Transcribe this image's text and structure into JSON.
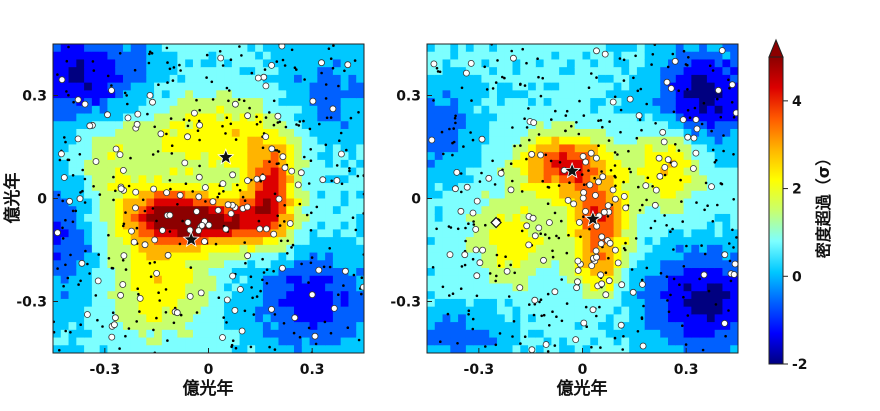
{
  "chart_data": [
    {
      "type": "heatmap",
      "panel": "left",
      "xlabel": "億光年",
      "ylabel": "億光年",
      "xlim": [
        -0.45,
        0.45
      ],
      "ylim": [
        -0.45,
        0.45
      ],
      "xticks": [
        {
          "value": -0.3,
          "label": "-0.3"
        },
        {
          "value": 0,
          "label": "0"
        },
        {
          "value": 0.3,
          "label": "0.3"
        }
      ],
      "yticks": [
        {
          "value": 0.3,
          "label": "0.3"
        },
        {
          "value": 0,
          "label": "0"
        },
        {
          "value": -0.3,
          "label": "-0.3"
        }
      ],
      "density_peaks": [
        {
          "x": -0.12,
          "y": -0.05,
          "amp": 3.8,
          "sx": 0.09,
          "sy": 0.06
        },
        {
          "x": 0.05,
          "y": -0.07,
          "amp": 3.6,
          "sx": 0.1,
          "sy": 0.05
        },
        {
          "x": 0.18,
          "y": 0.02,
          "amp": 3.4,
          "sx": 0.05,
          "sy": 0.1
        },
        {
          "x": -0.15,
          "y": -0.25,
          "amp": 1.8,
          "sx": 0.1,
          "sy": 0.1
        },
        {
          "x": 0.02,
          "y": 0.18,
          "amp": 1.8,
          "sx": 0.15,
          "sy": 0.08
        },
        {
          "x": -0.3,
          "y": 0.12,
          "amp": 1.2,
          "sx": 0.08,
          "sy": 0.15
        }
      ],
      "density_troughs": [
        {
          "x": -0.35,
          "y": 0.35,
          "amp": 2.6,
          "sx": 0.12,
          "sy": 0.1
        },
        {
          "x": -0.42,
          "y": -0.1,
          "amp": 1.6,
          "sx": 0.08,
          "sy": 0.15
        },
        {
          "x": 0.3,
          "y": -0.3,
          "amp": 2.0,
          "sx": 0.12,
          "sy": 0.1
        },
        {
          "x": 0.35,
          "y": 0.3,
          "amp": 1.2,
          "sx": 0.1,
          "sy": 0.1
        }
      ],
      "stars": [
        {
          "x": 0.05,
          "y": 0.12
        },
        {
          "x": -0.05,
          "y": -0.12
        }
      ],
      "diamonds": []
    },
    {
      "type": "heatmap",
      "panel": "right",
      "xlabel": "億光年",
      "ylabel": "",
      "xlim": [
        -0.45,
        0.45
      ],
      "ylim": [
        -0.45,
        0.45
      ],
      "xticks": [
        {
          "value": -0.3,
          "label": "-0.3"
        },
        {
          "value": 0,
          "label": "0"
        },
        {
          "value": 0.3,
          "label": "0.3"
        }
      ],
      "yticks": [
        {
          "value": 0.3,
          "label": "0.3"
        },
        {
          "value": 0,
          "label": "0"
        },
        {
          "value": -0.3,
          "label": "-0.3"
        }
      ],
      "density_peaks": [
        {
          "x": -0.05,
          "y": 0.1,
          "amp": 3.6,
          "sx": 0.09,
          "sy": 0.06
        },
        {
          "x": 0.05,
          "y": -0.05,
          "amp": 3.2,
          "sx": 0.06,
          "sy": 0.07
        },
        {
          "x": 0.05,
          "y": -0.2,
          "amp": 2.4,
          "sx": 0.05,
          "sy": 0.06
        },
        {
          "x": 0.25,
          "y": 0.1,
          "amp": 2.2,
          "sx": 0.07,
          "sy": 0.08
        },
        {
          "x": -0.2,
          "y": -0.12,
          "amp": 1.6,
          "sx": 0.09,
          "sy": 0.09
        }
      ],
      "density_troughs": [
        {
          "x": 0.35,
          "y": 0.3,
          "amp": 2.6,
          "sx": 0.1,
          "sy": 0.1
        },
        {
          "x": 0.35,
          "y": -0.3,
          "amp": 2.6,
          "sx": 0.12,
          "sy": 0.1
        },
        {
          "x": -0.4,
          "y": 0.2,
          "amp": 1.4,
          "sx": 0.06,
          "sy": 0.1
        },
        {
          "x": -0.35,
          "y": -0.4,
          "amp": 1.2,
          "sx": 0.1,
          "sy": 0.06
        }
      ],
      "stars": [
        {
          "x": -0.03,
          "y": 0.08
        },
        {
          "x": 0.03,
          "y": -0.06
        }
      ],
      "diamonds": [
        {
          "x": -0.25,
          "y": -0.07
        }
      ]
    }
  ],
  "colorbar": {
    "label": "密度超過（σ）",
    "vmin": -2,
    "vmax": 5,
    "ticks": [
      {
        "value": 4,
        "label": "4"
      },
      {
        "value": 2,
        "label": "2"
      },
      {
        "value": 0,
        "label": "0"
      },
      {
        "value": -2,
        "label": "-2"
      }
    ],
    "extend": "max",
    "colormap": [
      "#000080",
      "#0000ff",
      "#0060ff",
      "#00c8ff",
      "#7dffff",
      "#c8ff6e",
      "#ffff00",
      "#ffb400",
      "#ff5a00",
      "#dc0000",
      "#8c0000"
    ]
  },
  "colors": {
    "galaxy_dot": "#000000",
    "galaxy_circle_fill": "#ffffff",
    "marker_edge": "#111111"
  }
}
